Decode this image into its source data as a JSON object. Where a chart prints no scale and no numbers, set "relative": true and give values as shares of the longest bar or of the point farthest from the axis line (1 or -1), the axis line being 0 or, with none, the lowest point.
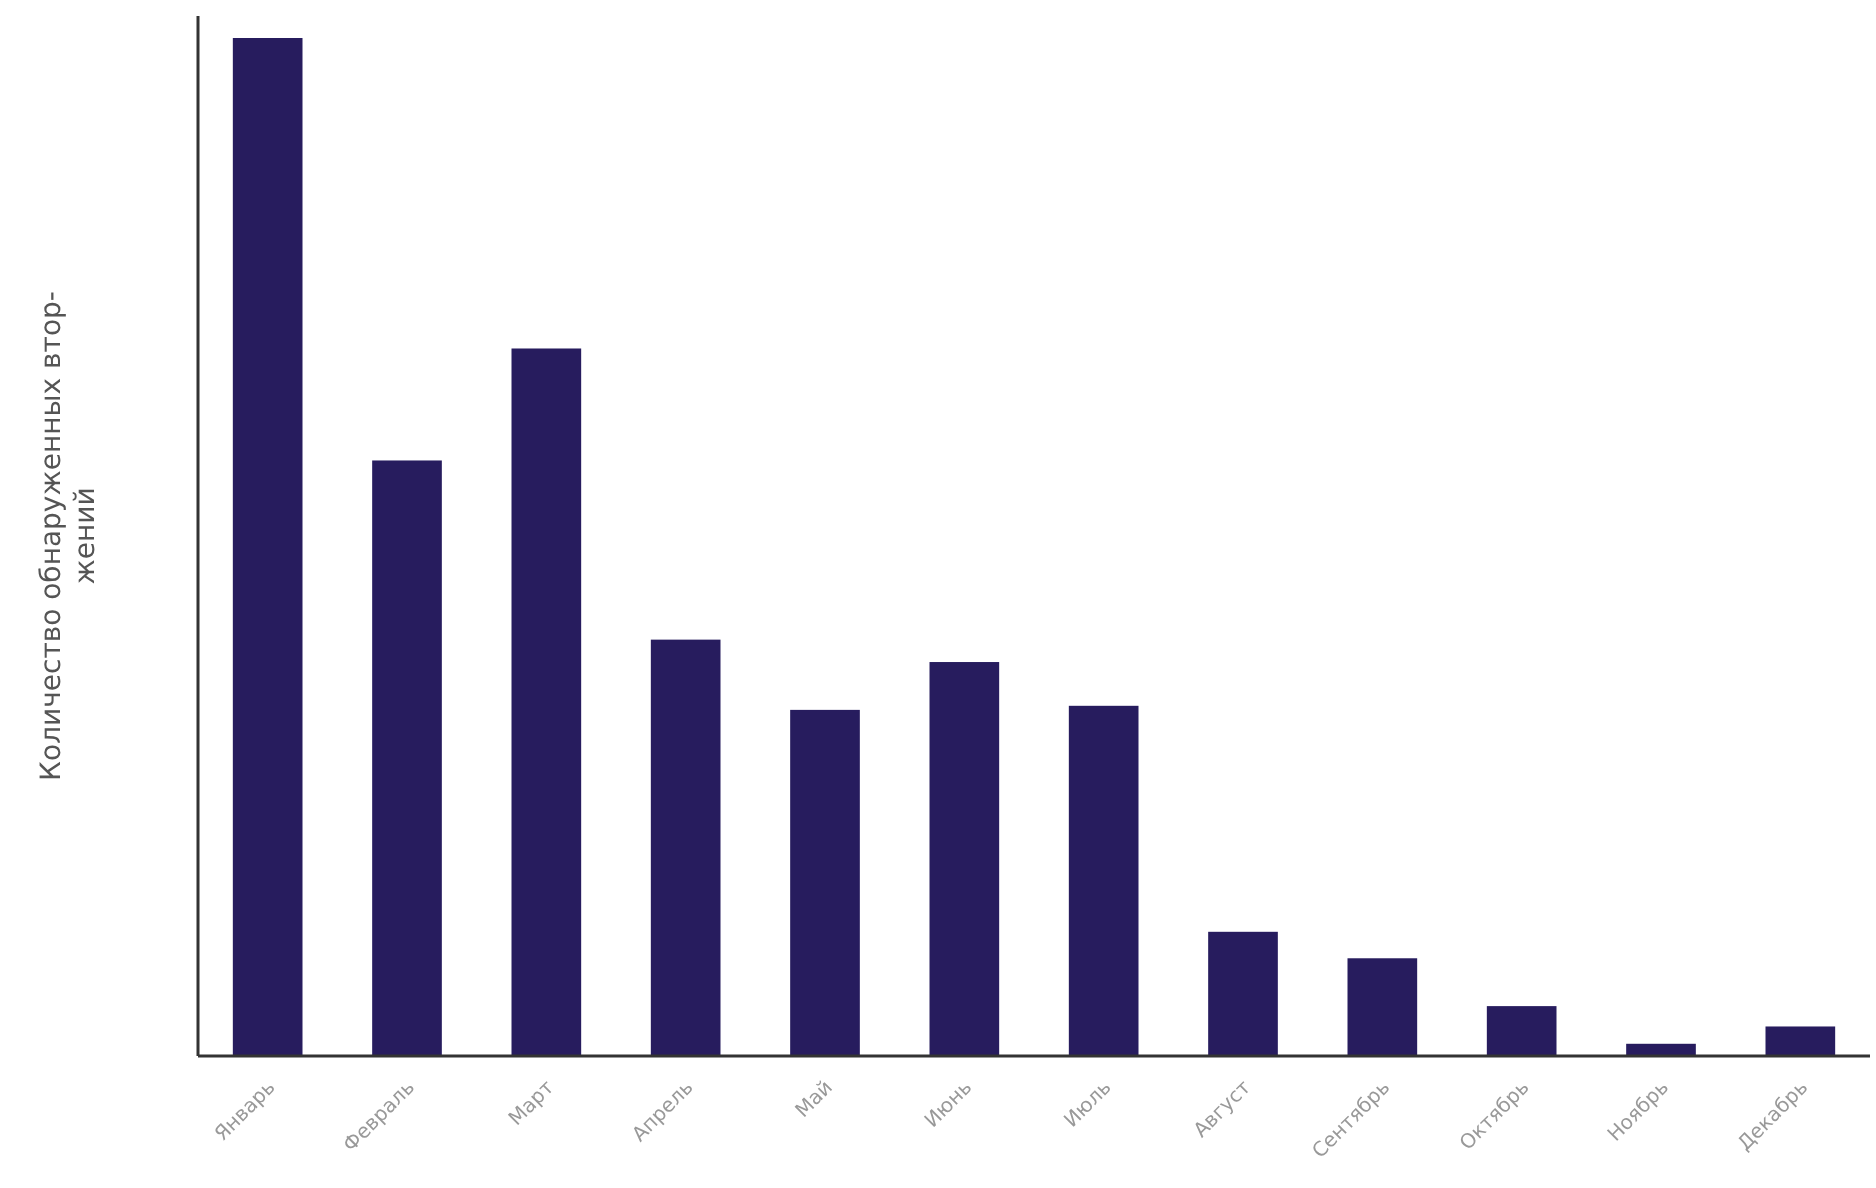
{
  "chart_data": {
    "type": "bar",
    "relative": true,
    "ylabel": "Количество обнаруженных втор-жений",
    "categories": [
      "Январь",
      "Февраль",
      "Март",
      "Апрель",
      "Май",
      "Июнь",
      "Июль",
      "Август",
      "Сентябрь",
      "Октябрь",
      "Ноябрь",
      "Декабрь"
    ],
    "values": [
      1,
      0.585,
      0.695,
      0.409,
      0.34,
      0.387,
      0.344,
      0.122,
      0.096,
      0.049,
      0.012,
      0.029
    ],
    "color": "#271c5e"
  }
}
